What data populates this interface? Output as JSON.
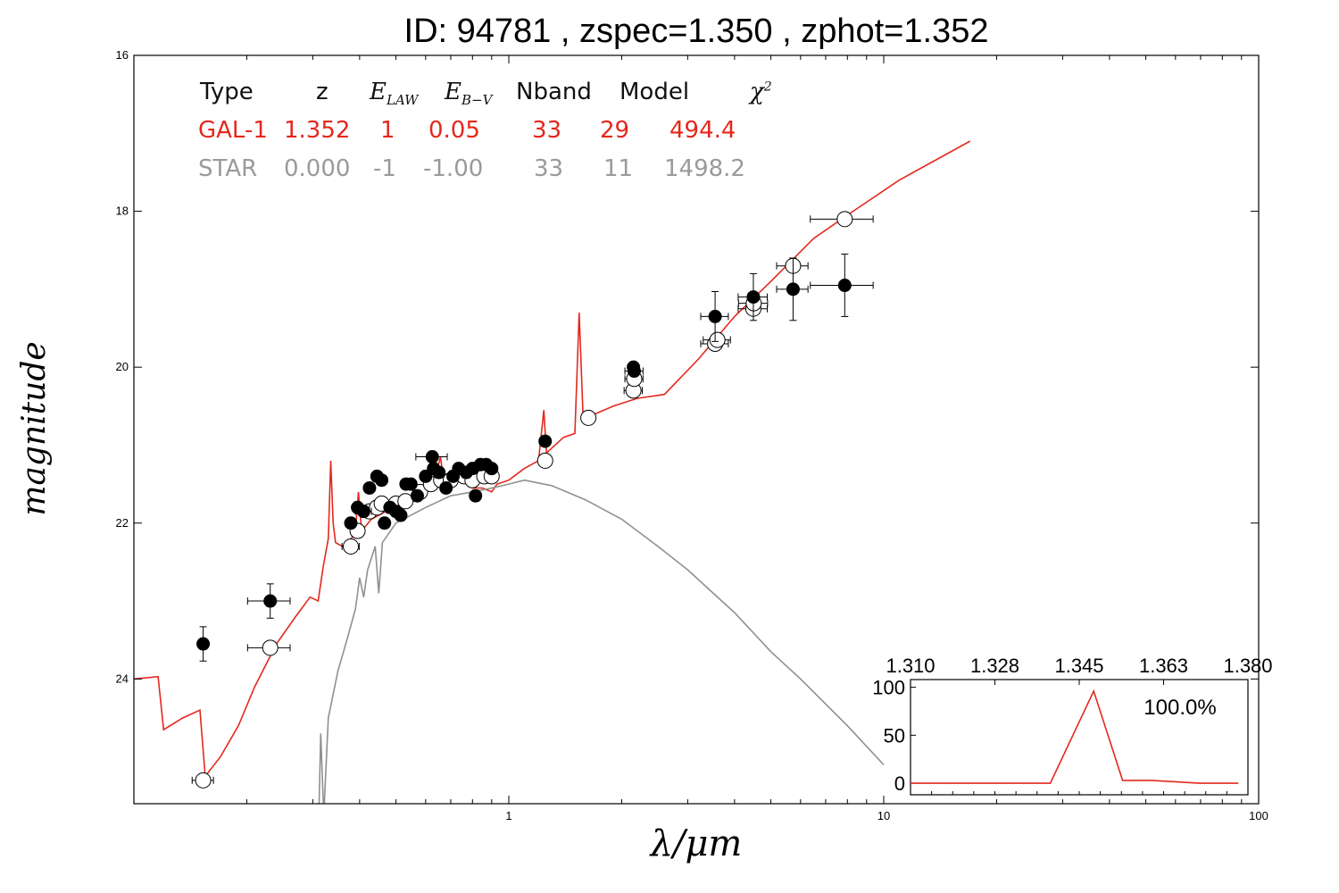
{
  "title": "ID:  94781 , zspec=1.350 , zphot=1.352",
  "fit_table": {
    "headers": [
      "Type",
      "z",
      "E_LAW",
      "E_B-V",
      "Nband",
      "Model",
      "χ2"
    ],
    "rows": [
      {
        "type": "GAL-1",
        "z": "1.352",
        "e_law": "1",
        "e_bv": "0.05",
        "nband": "33",
        "model": "29",
        "chi2": "494.4",
        "color": "#e4281e"
      },
      {
        "type": "STAR",
        "z": "0.000",
        "e_law": "-1",
        "e_bv": "-1.00",
        "nband": "33",
        "model": "11",
        "chi2": "1498.2",
        "color": "#9a9a9a"
      }
    ]
  },
  "chart_data": [
    {
      "type": "scatter",
      "xlabel": "λ/μm",
      "ylabel": "magnitude",
      "xscale": "log",
      "xlim": [
        0.1,
        100
      ],
      "ylim": [
        25.6,
        16
      ],
      "y_inverted": true,
      "x_ticks": [
        1,
        10,
        100
      ],
      "x_tick_labels": [
        "1",
        "10",
        "100"
      ],
      "y_ticks": [
        16,
        18,
        20,
        22,
        24
      ],
      "y_tick_labels": [
        "16",
        "18",
        "20",
        "22",
        "24"
      ],
      "observed_points": [
        {
          "x": 0.153,
          "y": 23.55,
          "xerr": 0.004,
          "yerr": 0.22
        },
        {
          "x": 0.231,
          "y": 23.0,
          "xerr": 0.03,
          "yerr": 0.22
        },
        {
          "x": 0.379,
          "y": 22.0,
          "xerr": 0.008,
          "yerr": 0.07
        },
        {
          "x": 0.395,
          "y": 21.8,
          "xerr": 0.008,
          "yerr": 0.07
        },
        {
          "x": 0.41,
          "y": 21.85,
          "xerr": 0.02,
          "yerr": 0.07
        },
        {
          "x": 0.425,
          "y": 21.55,
          "xerr": 0.01,
          "yerr": 0.07
        },
        {
          "x": 0.445,
          "y": 21.4,
          "xerr": 0.01,
          "yerr": 0.07
        },
        {
          "x": 0.458,
          "y": 21.45,
          "xerr": 0.01,
          "yerr": 0.07
        },
        {
          "x": 0.466,
          "y": 22.0,
          "xerr": 0.01,
          "yerr": 0.07
        },
        {
          "x": 0.482,
          "y": 21.8,
          "xerr": 0.01,
          "yerr": 0.07
        },
        {
          "x": 0.5,
          "y": 21.85,
          "xerr": 0.01,
          "yerr": 0.07
        },
        {
          "x": 0.515,
          "y": 21.9,
          "xerr": 0.01,
          "yerr": 0.07
        },
        {
          "x": 0.532,
          "y": 21.5,
          "xerr": 0.01,
          "yerr": 0.07
        },
        {
          "x": 0.548,
          "y": 21.5,
          "xerr": 0.01,
          "yerr": 0.07
        },
        {
          "x": 0.57,
          "y": 21.65,
          "xerr": 0.01,
          "yerr": 0.07
        },
        {
          "x": 0.6,
          "y": 21.4,
          "xerr": 0.01,
          "yerr": 0.07
        },
        {
          "x": 0.625,
          "y": 21.15,
          "xerr": 0.06,
          "yerr": 0.07
        },
        {
          "x": 0.63,
          "y": 21.3,
          "xerr": 0.01,
          "yerr": 0.07
        },
        {
          "x": 0.651,
          "y": 21.35,
          "xerr": 0.01,
          "yerr": 0.07
        },
        {
          "x": 0.68,
          "y": 21.55,
          "xerr": 0.01,
          "yerr": 0.07
        },
        {
          "x": 0.71,
          "y": 21.4,
          "xerr": 0.01,
          "yerr": 0.07
        },
        {
          "x": 0.735,
          "y": 21.3,
          "xerr": 0.01,
          "yerr": 0.07
        },
        {
          "x": 0.77,
          "y": 21.35,
          "xerr": 0.01,
          "yerr": 0.07
        },
        {
          "x": 0.8,
          "y": 21.3,
          "xerr": 0.01,
          "yerr": 0.07
        },
        {
          "x": 0.815,
          "y": 21.65,
          "xerr": 0.01,
          "yerr": 0.07
        },
        {
          "x": 0.84,
          "y": 21.25,
          "xerr": 0.01,
          "yerr": 0.07
        },
        {
          "x": 0.87,
          "y": 21.25,
          "xerr": 0.01,
          "yerr": 0.07
        },
        {
          "x": 0.9,
          "y": 21.3,
          "xerr": 0.01,
          "yerr": 0.07
        },
        {
          "x": 1.25,
          "y": 20.95,
          "xerr": 0.03,
          "yerr": 0.05
        },
        {
          "x": 2.15,
          "y": 20.0,
          "xerr": 0.05,
          "yerr": 0.05
        },
        {
          "x": 2.16,
          "y": 20.05,
          "xerr": 0.12,
          "yerr": 0.05
        },
        {
          "x": 3.55,
          "y": 19.35,
          "xerr": 0.3,
          "yerr": 0.32
        },
        {
          "x": 4.49,
          "y": 19.1,
          "xerr": 0.4,
          "yerr": 0.3
        },
        {
          "x": 5.73,
          "y": 19.0,
          "xerr": 0.55,
          "yerr": 0.4
        },
        {
          "x": 7.87,
          "y": 18.95,
          "xerr": 1.5,
          "yerr": 0.4
        }
      ],
      "model_points": [
        {
          "x": 0.153,
          "y": 25.3,
          "xerr": 0.01
        },
        {
          "x": 0.231,
          "y": 23.6,
          "xerr": 0.03
        },
        {
          "x": 0.379,
          "y": 22.3,
          "xerr": 0.02
        },
        {
          "x": 0.395,
          "y": 22.1,
          "xerr": 0.01
        },
        {
          "x": 0.425,
          "y": 21.85,
          "xerr": 0.01
        },
        {
          "x": 0.445,
          "y": 21.8,
          "xerr": 0.01
        },
        {
          "x": 0.458,
          "y": 21.75,
          "xerr": 0.01
        },
        {
          "x": 0.5,
          "y": 21.75,
          "xerr": 0.01
        },
        {
          "x": 0.53,
          "y": 21.72,
          "xerr": 0.01
        },
        {
          "x": 0.58,
          "y": 21.6,
          "xerr": 0.01
        },
        {
          "x": 0.62,
          "y": 21.5,
          "xerr": 0.01
        },
        {
          "x": 0.66,
          "y": 21.45,
          "xerr": 0.01
        },
        {
          "x": 0.7,
          "y": 21.45,
          "xerr": 0.01
        },
        {
          "x": 0.76,
          "y": 21.4,
          "xerr": 0.01
        },
        {
          "x": 0.8,
          "y": 21.45,
          "xerr": 0.01
        },
        {
          "x": 0.86,
          "y": 21.4,
          "xerr": 0.01
        },
        {
          "x": 0.9,
          "y": 21.4,
          "xerr": 0.01
        },
        {
          "x": 1.25,
          "y": 21.2,
          "xerr": 0.04
        },
        {
          "x": 1.63,
          "y": 20.65,
          "xerr": 0.05
        },
        {
          "x": 2.15,
          "y": 20.3,
          "xerr": 0.12
        },
        {
          "x": 2.16,
          "y": 20.15,
          "xerr": 0.12
        },
        {
          "x": 3.55,
          "y": 19.7,
          "xerr": 0.3
        },
        {
          "x": 3.6,
          "y": 19.65,
          "xerr": 0.3
        },
        {
          "x": 4.49,
          "y": 19.25,
          "xerr": 0.4
        },
        {
          "x": 4.5,
          "y": 19.18,
          "xerr": 0.4
        },
        {
          "x": 5.73,
          "y": 18.7,
          "xerr": 0.55
        },
        {
          "x": 7.87,
          "y": 18.1,
          "xerr": 1.5
        }
      ],
      "series": [
        {
          "color": "#e4281e",
          "points": [
            [
              0.1,
              24.0
            ],
            [
              0.116,
              23.97
            ],
            [
              0.12,
              24.65
            ],
            [
              0.135,
              24.5
            ],
            [
              0.15,
              24.4
            ],
            [
              0.155,
              25.25
            ],
            [
              0.17,
              25.0
            ],
            [
              0.19,
              24.6
            ],
            [
              0.21,
              24.1
            ],
            [
              0.24,
              23.55
            ],
            [
              0.27,
              23.2
            ],
            [
              0.295,
              22.95
            ],
            [
              0.31,
              23.0
            ],
            [
              0.32,
              22.55
            ],
            [
              0.33,
              22.2
            ],
            [
              0.335,
              21.2
            ],
            [
              0.34,
              22.0
            ],
            [
              0.345,
              22.25
            ],
            [
              0.36,
              22.3
            ],
            [
              0.38,
              22.2
            ],
            [
              0.39,
              22.1
            ],
            [
              0.397,
              21.6
            ],
            [
              0.405,
              22.1
            ],
            [
              0.43,
              21.95
            ],
            [
              0.47,
              21.85
            ],
            [
              0.5,
              21.75
            ],
            [
              0.53,
              21.7
            ],
            [
              0.58,
              21.6
            ],
            [
              0.63,
              21.5
            ],
            [
              0.657,
              21.15
            ],
            [
              0.67,
              21.45
            ],
            [
              0.75,
              21.45
            ],
            [
              0.8,
              21.55
            ],
            [
              0.85,
              21.55
            ],
            [
              0.9,
              21.6
            ],
            [
              0.93,
              21.5
            ],
            [
              1.0,
              21.45
            ],
            [
              1.1,
              21.3
            ],
            [
              1.2,
              21.2
            ],
            [
              1.24,
              20.55
            ],
            [
              1.26,
              21.1
            ],
            [
              1.4,
              20.9
            ],
            [
              1.5,
              20.85
            ],
            [
              1.54,
              19.3
            ],
            [
              1.58,
              20.7
            ],
            [
              1.7,
              20.6
            ],
            [
              1.9,
              20.5
            ],
            [
              2.2,
              20.4
            ],
            [
              2.6,
              20.35
            ],
            [
              3.2,
              19.9
            ],
            [
              4.0,
              19.35
            ],
            [
              5.0,
              18.9
            ],
            [
              6.5,
              18.35
            ],
            [
              8.0,
              18.05
            ],
            [
              11.0,
              17.6
            ],
            [
              17.0,
              17.1
            ]
          ]
        },
        {
          "color": "#909090",
          "points": [
            [
              0.312,
              25.6
            ],
            [
              0.315,
              24.7
            ],
            [
              0.32,
              25.6
            ],
            [
              0.322,
              25.6
            ],
            [
              0.33,
              24.5
            ],
            [
              0.35,
              23.9
            ],
            [
              0.37,
              23.5
            ],
            [
              0.39,
              23.1
            ],
            [
              0.4,
              22.7
            ],
            [
              0.41,
              22.95
            ],
            [
              0.42,
              22.6
            ],
            [
              0.44,
              22.3
            ],
            [
              0.45,
              22.9
            ],
            [
              0.46,
              22.25
            ],
            [
              0.5,
              22.0
            ],
            [
              0.6,
              21.8
            ],
            [
              0.7,
              21.65
            ],
            [
              0.8,
              21.6
            ],
            [
              0.9,
              21.55
            ],
            [
              1.0,
              21.5
            ],
            [
              1.1,
              21.45
            ],
            [
              1.3,
              21.52
            ],
            [
              1.6,
              21.7
            ],
            [
              2.0,
              21.95
            ],
            [
              2.5,
              22.3
            ],
            [
              3.0,
              22.6
            ],
            [
              4.0,
              23.15
            ],
            [
              5.0,
              23.65
            ],
            [
              6.0,
              24.0
            ],
            [
              8.0,
              24.6
            ],
            [
              10.0,
              25.1
            ]
          ]
        }
      ]
    },
    {
      "type": "line",
      "x_tick_labels": [
        "1.310",
        "1.328",
        "1.345",
        "1.363",
        "1.380"
      ],
      "y_ticks": [
        0,
        50,
        100
      ],
      "y_tick_labels": [
        "0",
        "50",
        "100"
      ],
      "xlim": [
        1.31,
        1.38
      ],
      "ylim": [
        -12,
        108
      ],
      "annotation": "100.0%",
      "series": [
        {
          "color": "#e4281e",
          "x": [
            1.31,
            1.33,
            1.339,
            1.348,
            1.354,
            1.36,
            1.37,
            1.378
          ],
          "values": [
            0,
            0,
            0,
            96,
            3,
            3,
            0,
            0
          ]
        }
      ]
    }
  ]
}
